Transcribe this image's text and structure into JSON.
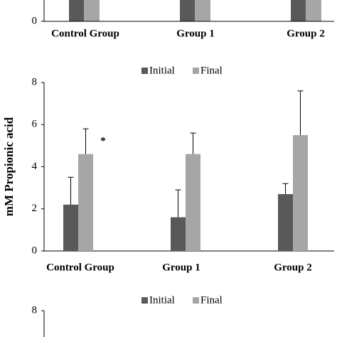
{
  "chart_data": [
    {
      "type": "bar",
      "categories": [
        "Control Group",
        "Group 1",
        "Group 2"
      ],
      "yticks": [
        0
      ]
    },
    {
      "type": "bar",
      "ylabel": "mM  Propionic acid",
      "categories": [
        "Control Group",
        "Group 1",
        "Group 2"
      ],
      "series": [
        {
          "name": "Initial",
          "color": "#595959",
          "values": [
            2.2,
            1.6,
            2.7
          ],
          "errors": [
            1.3,
            1.3,
            0.5
          ]
        },
        {
          "name": "Final",
          "color": "#a6a6a6",
          "values": [
            4.6,
            4.6,
            5.5
          ],
          "errors": [
            1.2,
            1.0,
            2.1
          ]
        }
      ],
      "annotation": "*",
      "ylim": [
        0,
        8
      ],
      "yticks": [
        0,
        2,
        4,
        6,
        8
      ],
      "legend": "top"
    },
    {
      "type": "bar",
      "series": [
        {
          "name": "Initial",
          "color": "#595959"
        },
        {
          "name": "Final",
          "color": "#a6a6a6"
        }
      ],
      "yticks": [
        8
      ],
      "legend": "top"
    }
  ]
}
